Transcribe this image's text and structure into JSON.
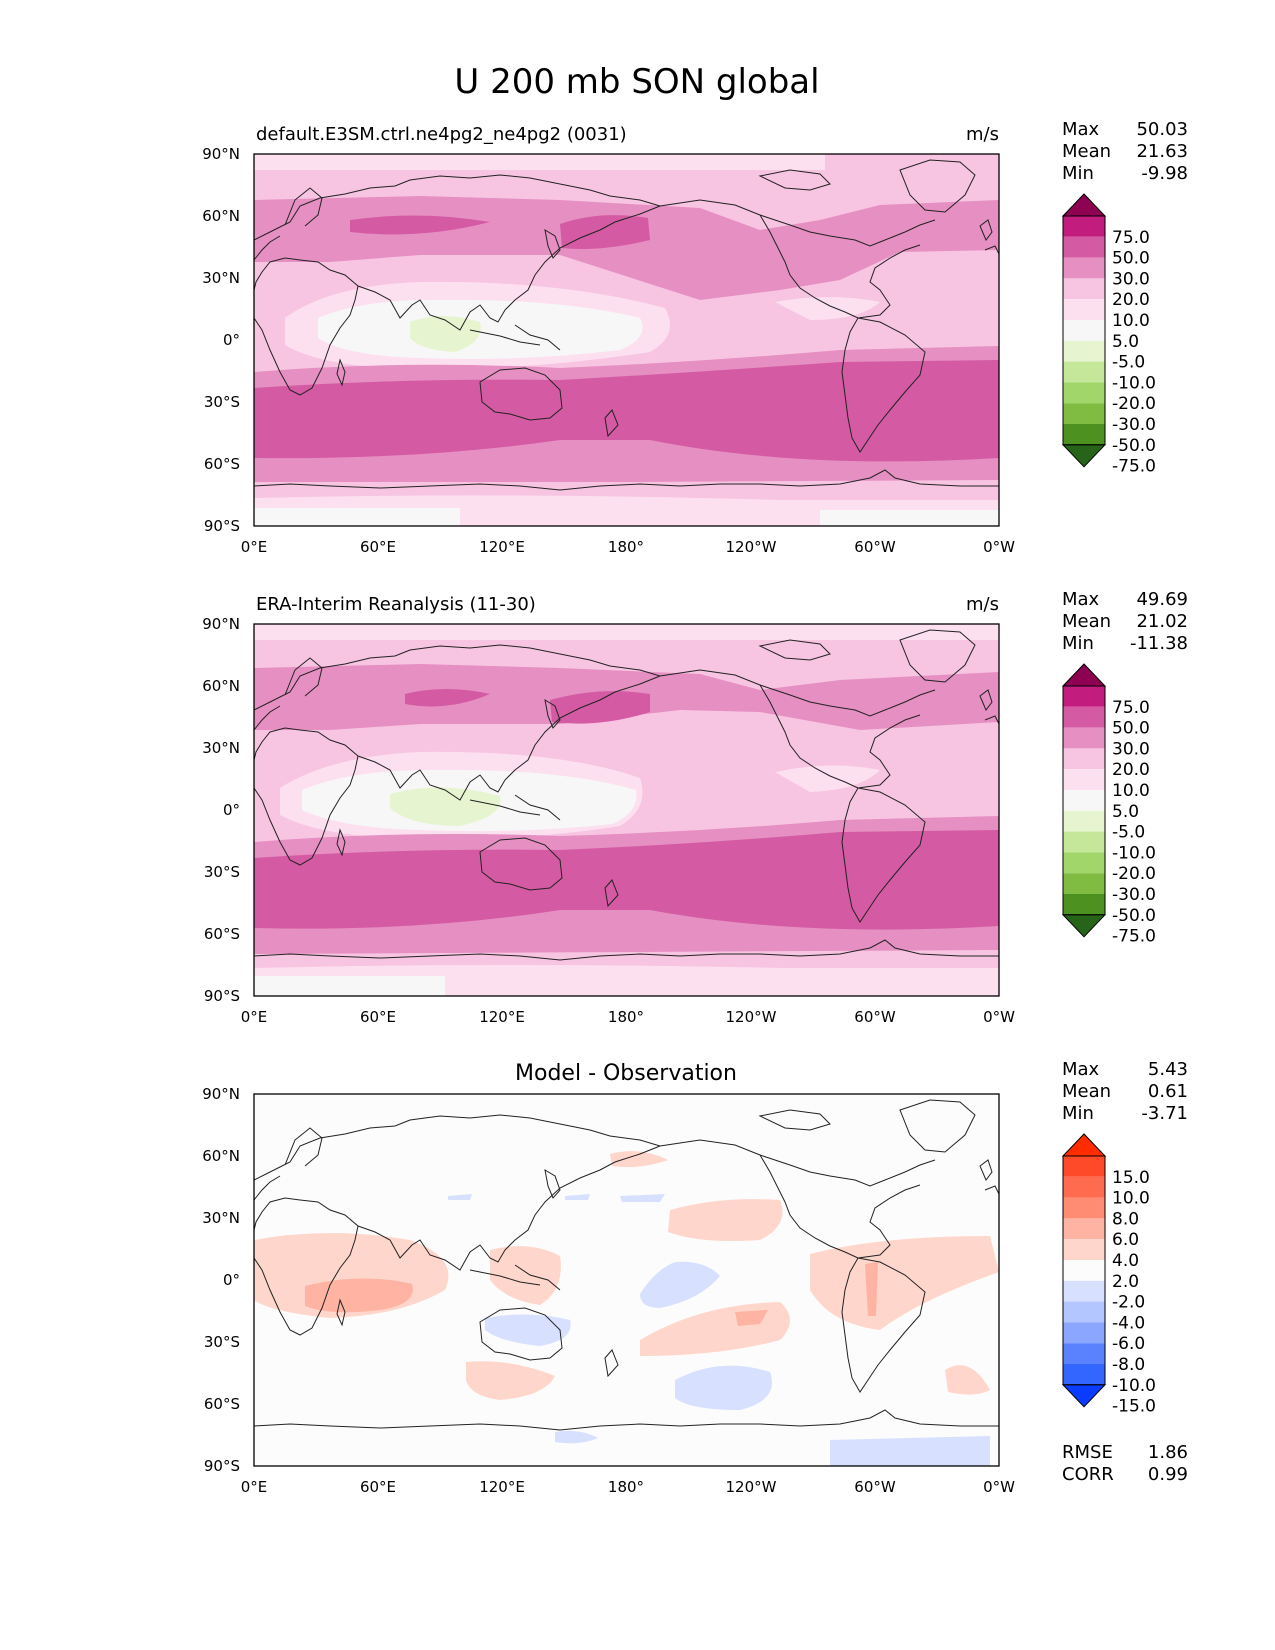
{
  "figure": {
    "title": "U 200 mb SON global"
  },
  "axes": {
    "lat_ticks": [
      "90°N",
      "60°N",
      "30°N",
      "0°",
      "30°S",
      "60°S",
      "90°S"
    ],
    "lon_ticks": [
      "0°E",
      "60°E",
      "120°E",
      "180°",
      "120°W",
      "60°W",
      "0°W"
    ]
  },
  "colors": {
    "abs_levels": [
      "#276419",
      "#4d9221",
      "#7fbc41",
      "#a1d76a",
      "#c4e79a",
      "#e6f5d0",
      "#f7f7f7",
      "#fde0ef",
      "#f7c5e2",
      "#e68fc2",
      "#d45ba3",
      "#c21d7e",
      "#8e0152"
    ],
    "diff_levels": [
      "#0a3cff",
      "#3366ff",
      "#5a82ff",
      "#8aa6ff",
      "#b4c6ff",
      "#d7e0ff",
      "#fcfcfc",
      "#ffd6cc",
      "#ffb3a3",
      "#ff8c73",
      "#ff6b4f",
      "#ff4a2a",
      "#ff2c00"
    ]
  },
  "chart_data": [
    {
      "type": "heatmap",
      "title": "default.E3SM.ctrl.ne4pg2_ne4pg2 (0031)",
      "units": "m/s",
      "stats": {
        "max_label": "Max",
        "max": "50.03",
        "mean_label": "Mean",
        "mean": "21.63",
        "min_label": "Min",
        "min": "-9.98"
      },
      "colorbar_levels": [
        "75.0",
        "50.0",
        "30.0",
        "20.0",
        "10.0",
        "5.0",
        "-5.0",
        "-10.0",
        "-20.0",
        "-30.0",
        "-50.0",
        "-75.0"
      ],
      "xlim": [
        0,
        360
      ],
      "ylim": [
        -90,
        90
      ]
    },
    {
      "type": "heatmap",
      "title": "ERA-Interim Reanalysis (11-30)",
      "units": "m/s",
      "stats": {
        "max_label": "Max",
        "max": "49.69",
        "mean_label": "Mean",
        "mean": "21.02",
        "min_label": "Min",
        "min": "-11.38"
      },
      "colorbar_levels": [
        "75.0",
        "50.0",
        "30.0",
        "20.0",
        "10.0",
        "5.0",
        "-5.0",
        "-10.0",
        "-20.0",
        "-30.0",
        "-50.0",
        "-75.0"
      ],
      "xlim": [
        0,
        360
      ],
      "ylim": [
        -90,
        90
      ]
    },
    {
      "type": "heatmap",
      "title": "Model - Observation",
      "units": "",
      "stats": {
        "max_label": "Max",
        "max": "5.43",
        "mean_label": "Mean",
        "mean": "0.61",
        "min_label": "Min",
        "min": "-3.71"
      },
      "colorbar_levels": [
        "15.0",
        "10.0",
        "8.0",
        "6.0",
        "4.0",
        "2.0",
        "-2.0",
        "-4.0",
        "-6.0",
        "-8.0",
        "-10.0",
        "-15.0"
      ],
      "metrics": {
        "rmse_label": "RMSE",
        "rmse": "1.86",
        "corr_label": "CORR",
        "corr": "0.99"
      },
      "xlim": [
        0,
        360
      ],
      "ylim": [
        -90,
        90
      ]
    }
  ]
}
